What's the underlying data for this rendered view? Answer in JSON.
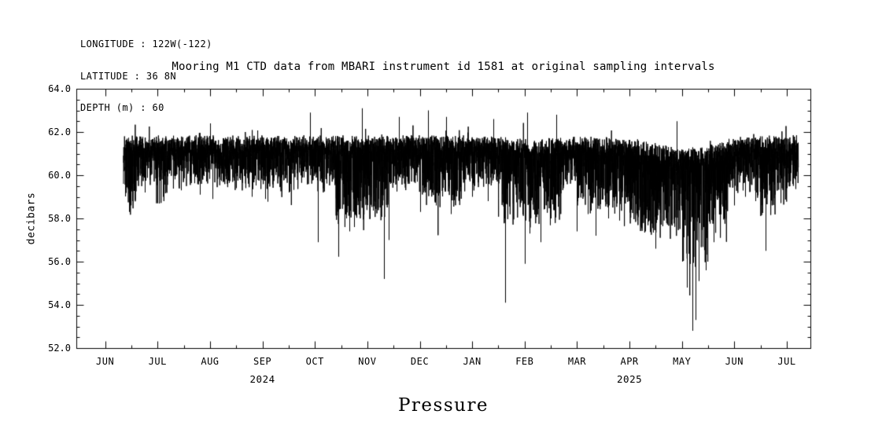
{
  "header": {
    "longitude": "LONGITUDE : 122W(-122)",
    "latitude": "LATITUDE : 36 8N",
    "depth": "DEPTH (m) : 60"
  },
  "title": "Mooring M1 CTD data from MBARI instrument id 1581 at original sampling intervals",
  "footer_label": "Pressure",
  "chart_data": {
    "type": "line",
    "title": "Mooring M1 CTD data from MBARI instrument id 1581 at original sampling intervals",
    "ylabel": "decibars",
    "xlabel": "Pressure",
    "ylim": [
      52.0,
      64.0
    ],
    "ytick_step": 2.0,
    "ytick_labels": [
      "52.0",
      "54.0",
      "56.0",
      "58.0",
      "60.0",
      "62.0",
      "64.0"
    ],
    "x_tick_labels": [
      "JUN",
      "JUL",
      "AUG",
      "SEP",
      "OCT",
      "NOV",
      "DEC",
      "JAN",
      "FEB",
      "MAR",
      "APR",
      "MAY",
      "JUN",
      "JUL"
    ],
    "year_labels": [
      {
        "label": "2024",
        "tick_index": 3
      },
      {
        "label": "2025",
        "tick_index": 10
      }
    ],
    "grid": false,
    "legend": false,
    "line_color": "#000000",
    "series": {
      "name": "pressure",
      "units": "decibars",
      "baseline": 61.1,
      "typical_band": [
        60.4,
        61.85
      ],
      "data_start_month": 0.35,
      "data_end_month": 13.22,
      "down_spikes": [
        [
          0.45,
          58.3
        ],
        [
          0.52,
          58.8
        ],
        [
          0.75,
          59.2
        ],
        [
          1.0,
          58.7
        ],
        [
          1.1,
          59.0
        ],
        [
          1.45,
          59.3
        ],
        [
          1.8,
          59.1
        ],
        [
          2.05,
          58.9
        ],
        [
          2.5,
          59.4
        ],
        [
          2.8,
          59.0
        ],
        [
          3.05,
          58.9
        ],
        [
          3.5,
          59.2
        ],
        [
          4.05,
          56.9
        ],
        [
          4.6,
          58.0
        ],
        [
          4.66,
          57.4
        ],
        [
          4.75,
          57.6
        ],
        [
          5.05,
          58.0
        ],
        [
          5.31,
          55.2
        ],
        [
          5.4,
          57.0
        ],
        [
          6.0,
          58.3
        ],
        [
          6.3,
          58.6
        ],
        [
          6.6,
          58.2
        ],
        [
          7.0,
          59.0
        ],
        [
          7.3,
          58.8
        ],
        [
          7.63,
          54.1
        ],
        [
          8.0,
          55.9
        ],
        [
          8.1,
          57.3
        ],
        [
          8.3,
          56.9
        ],
        [
          8.5,
          58.0
        ],
        [
          9.0,
          57.4
        ],
        [
          9.2,
          58.2
        ],
        [
          9.35,
          57.2
        ],
        [
          9.6,
          58.0
        ],
        [
          9.8,
          57.9
        ],
        [
          10.1,
          58.2
        ],
        [
          10.3,
          57.4
        ],
        [
          10.5,
          56.6
        ],
        [
          11.0,
          56.0
        ],
        [
          11.1,
          54.8
        ],
        [
          11.2,
          52.8
        ],
        [
          11.26,
          53.3
        ],
        [
          11.32,
          55.1
        ],
        [
          11.45,
          55.6
        ],
        [
          11.6,
          56.9
        ],
        [
          11.8,
          58.0
        ],
        [
          12.0,
          58.6
        ],
        [
          12.2,
          59.0
        ],
        [
          12.4,
          58.8
        ],
        [
          12.6,
          56.5
        ],
        [
          12.8,
          59.3
        ],
        [
          13.0,
          59.4
        ],
        [
          13.1,
          59.6
        ]
      ],
      "up_spikes": [
        [
          2.0,
          62.4
        ],
        [
          3.9,
          62.9
        ],
        [
          4.9,
          63.1
        ],
        [
          5.6,
          62.7
        ],
        [
          6.15,
          63.0
        ],
        [
          6.5,
          62.7
        ],
        [
          7.4,
          62.6
        ],
        [
          8.05,
          62.9
        ],
        [
          8.6,
          62.8
        ],
        [
          10.9,
          62.5
        ]
      ],
      "rough_regions": [
        [
          0.35,
          0.6,
          1.6
        ],
        [
          1.0,
          1.2,
          1.4
        ],
        [
          4.4,
          5.4,
          1.8
        ],
        [
          6.0,
          6.8,
          1.4
        ],
        [
          7.5,
          8.7,
          1.8
        ],
        [
          9.0,
          10.0,
          1.5
        ],
        [
          10.0,
          11.9,
          2.0
        ],
        [
          11.0,
          11.5,
          2.6
        ],
        [
          12.4,
          13.0,
          1.6
        ]
      ]
    }
  }
}
